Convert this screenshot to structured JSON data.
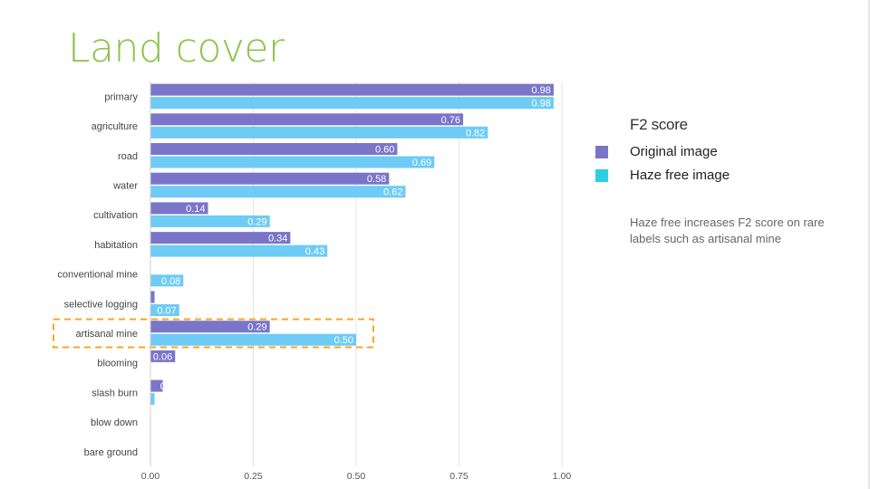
{
  "slide": {
    "title": "Land cover",
    "note": "Haze free increases F2 score on rare labels such as artisanal mine"
  },
  "legend": {
    "title": "F2 score",
    "items": [
      {
        "label": "Original image",
        "color": "#7b75c9"
      },
      {
        "label": "Haze free image",
        "color": "#2ecfe0"
      }
    ]
  },
  "chart_data": {
    "type": "bar",
    "orientation": "horizontal",
    "categories": [
      "primary",
      "agriculture",
      "road",
      "water",
      "cultivation",
      "habitation",
      "conventional mine",
      "selective logging",
      "artisanal mine",
      "blooming",
      "slash burn",
      "blow down",
      "bare ground"
    ],
    "series": [
      {
        "name": "Original image",
        "color": "#7b75c9",
        "values": [
          0.98,
          0.76,
          0.6,
          0.58,
          0.14,
          0.34,
          0,
          0.01,
          0.29,
          0.06,
          0.03,
          0,
          0
        ],
        "labels": [
          "0.98",
          "0.76",
          "0.60",
          "0.58",
          "0.14",
          "0.34",
          "",
          "",
          "0.29",
          "0.06",
          "0",
          "",
          ""
        ]
      },
      {
        "name": "Haze free image",
        "color": "#6ecbf5",
        "values": [
          0.98,
          0.82,
          0.69,
          0.62,
          0.29,
          0.43,
          0.08,
          0.07,
          0.5,
          0,
          0.01,
          0,
          0
        ],
        "labels": [
          "0.98",
          "0.82",
          "0.69",
          "0.62",
          "0.29",
          "0.43",
          "0.08",
          "0.07",
          "0.50",
          "",
          "",
          "",
          ""
        ]
      }
    ],
    "xticks": [
      "0.00",
      "0.25",
      "0.50",
      "0.75",
      "1.00"
    ],
    "xlim": [
      0,
      1
    ],
    "grid": true,
    "highlight_category": "artisanal mine",
    "highlight_color": "#f5a623"
  }
}
